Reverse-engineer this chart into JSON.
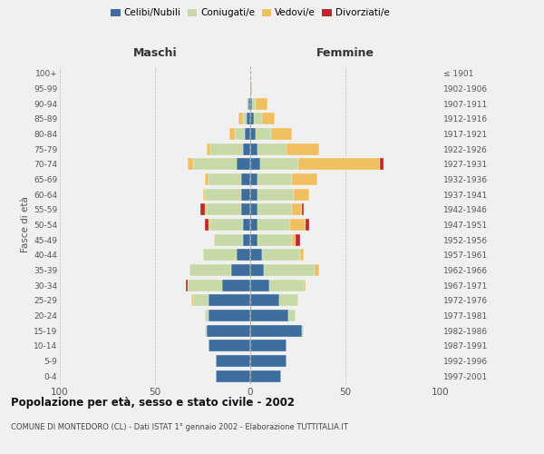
{
  "age_groups": [
    "0-4",
    "5-9",
    "10-14",
    "15-19",
    "20-24",
    "25-29",
    "30-34",
    "35-39",
    "40-44",
    "45-49",
    "50-54",
    "55-59",
    "60-64",
    "65-69",
    "70-74",
    "75-79",
    "80-84",
    "85-89",
    "90-94",
    "95-99",
    "100+"
  ],
  "birth_years": [
    "1997-2001",
    "1992-1996",
    "1987-1991",
    "1982-1986",
    "1977-1981",
    "1972-1976",
    "1967-1971",
    "1962-1966",
    "1957-1961",
    "1952-1956",
    "1947-1951",
    "1942-1946",
    "1937-1941",
    "1932-1936",
    "1927-1931",
    "1922-1926",
    "1917-1921",
    "1912-1916",
    "1907-1911",
    "1902-1906",
    "≤ 1901"
  ],
  "colors": {
    "celibe": "#3d6e9e",
    "coniugato": "#c8d9a8",
    "vedovo": "#f0c060",
    "divorziato": "#c0272d"
  },
  "maschi": {
    "celibe": [
      18,
      18,
      22,
      23,
      22,
      22,
      15,
      10,
      7,
      4,
      4,
      5,
      5,
      5,
      7,
      4,
      3,
      2,
      1,
      0,
      0
    ],
    "coniugato": [
      0,
      0,
      0,
      1,
      2,
      8,
      18,
      22,
      18,
      15,
      17,
      18,
      19,
      17,
      23,
      17,
      5,
      2,
      1,
      0,
      0
    ],
    "vedovo": [
      0,
      0,
      0,
      0,
      0,
      1,
      0,
      0,
      0,
      0,
      1,
      1,
      1,
      2,
      3,
      2,
      3,
      2,
      0,
      0,
      0
    ],
    "divorziato": [
      0,
      0,
      0,
      0,
      0,
      0,
      1,
      0,
      0,
      0,
      2,
      2,
      0,
      0,
      0,
      0,
      0,
      0,
      0,
      0,
      0
    ]
  },
  "femmine": {
    "celibe": [
      16,
      19,
      19,
      27,
      20,
      15,
      10,
      7,
      6,
      4,
      4,
      4,
      4,
      4,
      5,
      4,
      3,
      2,
      1,
      0,
      0
    ],
    "coniugato": [
      0,
      0,
      0,
      1,
      4,
      10,
      18,
      27,
      20,
      18,
      17,
      18,
      19,
      18,
      20,
      15,
      8,
      4,
      2,
      0,
      0
    ],
    "vedovo": [
      0,
      0,
      0,
      0,
      0,
      0,
      1,
      2,
      2,
      2,
      8,
      5,
      8,
      13,
      43,
      17,
      11,
      7,
      6,
      1,
      0
    ],
    "divorziato": [
      0,
      0,
      0,
      0,
      0,
      0,
      0,
      0,
      0,
      2,
      2,
      1,
      0,
      0,
      2,
      0,
      0,
      0,
      0,
      0,
      0
    ]
  },
  "title": "Popolazione per età, sesso e stato civile - 2002",
  "subtitle": "COMUNE DI MONTEDORO (CL) - Dati ISTAT 1° gennaio 2002 - Elaborazione TUTTITALIA.IT",
  "header_left": "Maschi",
  "header_right": "Femmine",
  "ylabel_left": "Fasce di età",
  "legend_labels": [
    "Celibi/Nubili",
    "Coniugati/e",
    "Vedovi/e",
    "Divorziati/e"
  ],
  "xlim": 100,
  "bg_color": "#f0f0f0"
}
